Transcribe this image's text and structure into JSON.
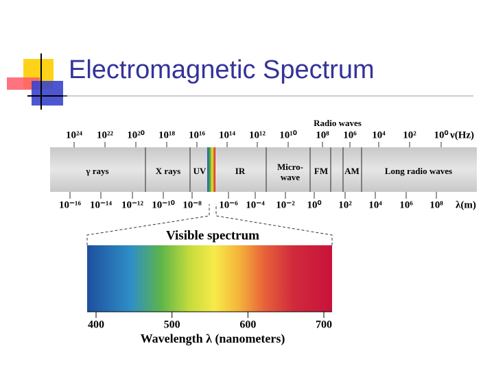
{
  "title": "Electromagnetic Spectrum",
  "spectrum": {
    "frequency_labels": [
      "10²⁴",
      "10²²",
      "10²⁰",
      "10¹⁸",
      "10¹⁶",
      "10¹⁴",
      "10¹²",
      "10¹⁰",
      "10⁸",
      "10⁶",
      "10⁴",
      "10²",
      "10⁰"
    ],
    "frequency_unit": "ν(Hz)",
    "radio_label": "Radio waves",
    "regions": [
      "γ rays",
      "X rays",
      "UV",
      "IR",
      "Micro-wave",
      "FM",
      "AM",
      "Long radio waves"
    ],
    "wavelength_labels": [
      "10⁻¹⁶",
      "10⁻¹⁴",
      "10⁻¹²",
      "10⁻¹⁰",
      "10⁻⁸",
      "10⁻⁶",
      "10⁻⁴",
      "10⁻²",
      "10⁰",
      "10²",
      "10⁴",
      "10⁶",
      "10⁸"
    ],
    "wavelength_unit": "λ(m)"
  },
  "visible": {
    "title": "Visible spectrum",
    "xlim": [
      400,
      700
    ],
    "xticks": [
      400,
      500,
      600,
      700
    ],
    "xlabel": "Wavelength λ  (nanometers)"
  }
}
